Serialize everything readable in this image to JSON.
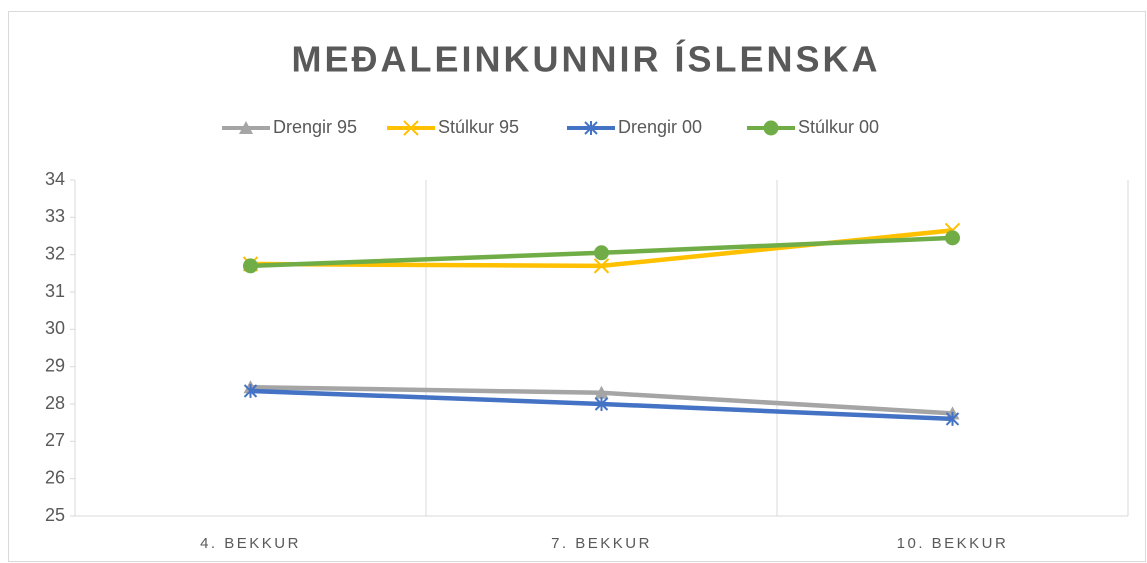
{
  "chart_data": {
    "type": "line",
    "title": "MEÐALEINKUNNIR ÍSLENSKA",
    "categories": [
      "4. BEKKUR",
      "7. BEKKUR",
      "10. BEKKUR"
    ],
    "series": [
      {
        "name": "Drengir 95",
        "color": "#a5a5a5",
        "marker": "triangle",
        "values": [
          28.45,
          28.3,
          27.75
        ]
      },
      {
        "name": "Stúlkur 95",
        "color": "#ffc000",
        "marker": "x",
        "values": [
          31.75,
          31.7,
          32.65
        ]
      },
      {
        "name": "Drengir 00",
        "color": "#4472c4",
        "marker": "star",
        "values": [
          28.35,
          28.0,
          27.6
        ]
      },
      {
        "name": "Stúlkur 00",
        "color": "#70ad47",
        "marker": "circle",
        "values": [
          31.7,
          32.05,
          32.45
        ]
      }
    ],
    "ylim": [
      25,
      34
    ],
    "yticks": [
      25,
      26,
      27,
      28,
      29,
      30,
      31,
      32,
      33,
      34
    ],
    "legend": "top"
  }
}
